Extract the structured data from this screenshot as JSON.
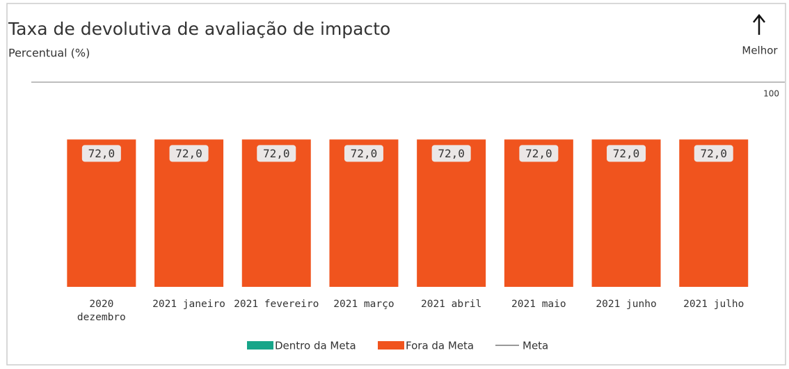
{
  "chart_data": {
    "type": "bar",
    "title": "Taxa de devolutiva de avaliação de impacto",
    "subtitle": "Percentual (%)",
    "direction_label": "Melhor",
    "categories": [
      "2020 dezembro",
      "2021 janeiro",
      "2021 fevereiro",
      "2021 março",
      "2021 abril",
      "2021 maio",
      "2021 junho",
      "2021 julho"
    ],
    "series": [
      {
        "name": "Dentro da Meta",
        "color": "#17a589",
        "values": [
          null,
          null,
          null,
          null,
          null,
          null,
          null,
          null
        ]
      },
      {
        "name": "Fora da Meta",
        "color": "#f0541e",
        "values": [
          72,
          72,
          72,
          72,
          72,
          72,
          72,
          72
        ],
        "value_labels": [
          "72,0",
          "72,0",
          "72,0",
          "72,0",
          "72,0",
          "72,0",
          "72,0",
          "72,0"
        ]
      }
    ],
    "meta": {
      "name": "Meta",
      "value": 100,
      "color": "#bdbdbd"
    },
    "ylim": [
      0,
      100
    ]
  }
}
